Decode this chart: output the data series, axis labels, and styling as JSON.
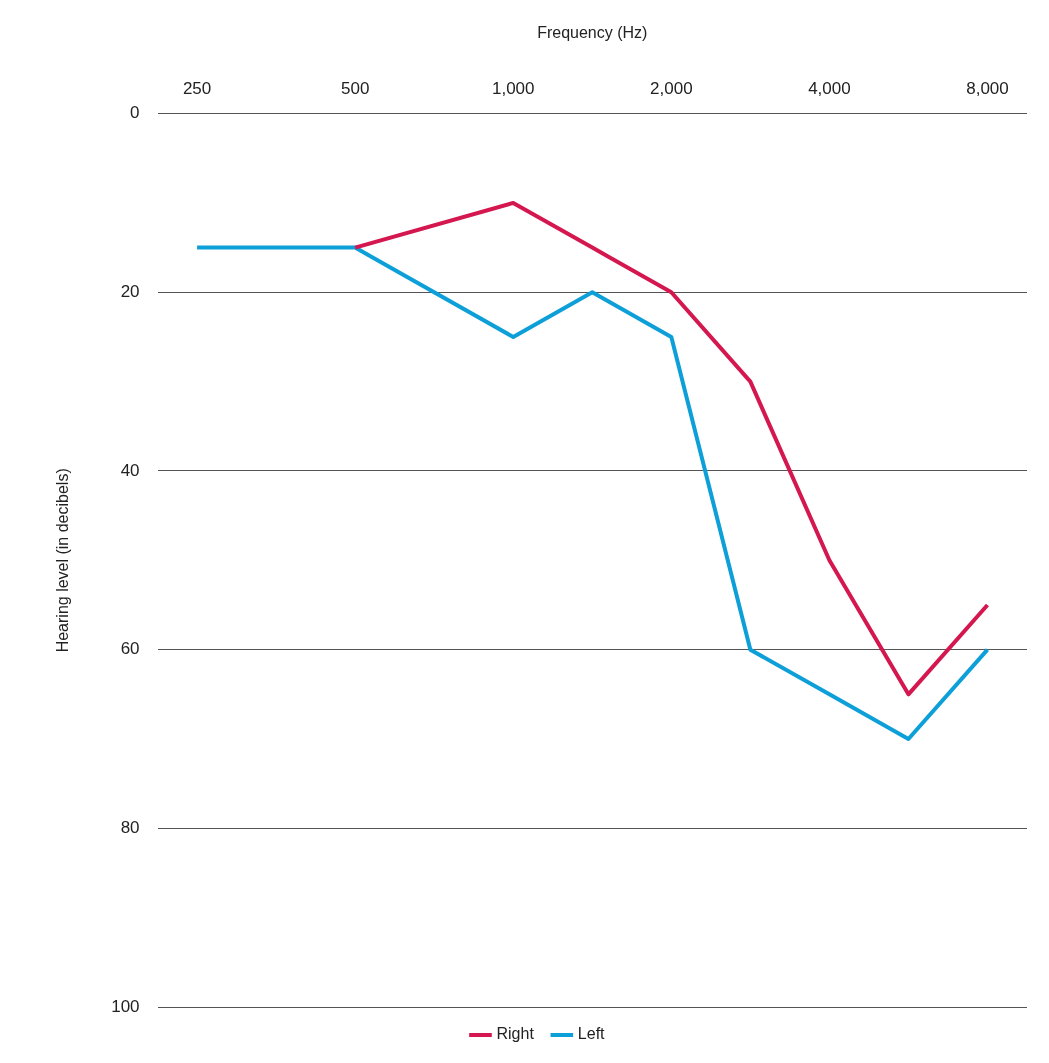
{
  "chart_data": {
    "type": "line",
    "xlabel": "Frequency (Hz)",
    "ylabel": "Hearing level (in decibels)",
    "categories": [
      "250",
      null,
      "500",
      null,
      "1,000",
      null,
      "2,000",
      null,
      "4,000",
      null,
      "8,000"
    ],
    "series": [
      {
        "name": "Right",
        "color": "#d4174f",
        "values": [
          null,
          null,
          15,
          null,
          10,
          15,
          20,
          30,
          50,
          65,
          55
        ]
      },
      {
        "name": "Left",
        "color": "#0d9fd8",
        "values": [
          15,
          null,
          15,
          null,
          25,
          20,
          25,
          60,
          65,
          70,
          60
        ]
      }
    ],
    "ylim": [
      100,
      0
    ],
    "yticks": [
      0,
      20,
      40,
      60,
      80,
      100
    ],
    "grid": "y",
    "legend": "bottom",
    "marker": "none",
    "line_style": "solid"
  }
}
